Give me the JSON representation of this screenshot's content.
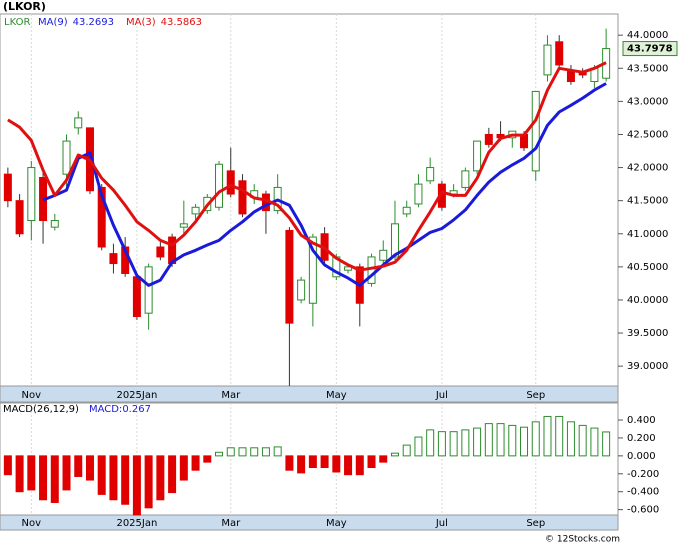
{
  "chart_data": {
    "type": "candlestick",
    "title": "(LKOR)",
    "symbol": "LKOR",
    "categories": [
      "",
      "",
      "Nov",
      "",
      "",
      "",
      "",
      "",
      "",
      "",
      "",
      "2025Jan",
      "",
      "",
      "",
      "",
      "",
      "",
      "",
      "Mar",
      "",
      "",
      "",
      "",
      "",
      "",
      "",
      "",
      "May",
      "",
      "",
      "",
      "",
      "",
      "",
      "",
      "",
      "Jul",
      "",
      "",
      "",
      "",
      "",
      "",
      "",
      "Sep",
      "",
      "",
      "",
      "",
      "",
      ""
    ],
    "candles": {
      "up_color": "#2e8b2e",
      "down_color": "#e00000",
      "open": [
        41.9,
        41.5,
        41.2,
        41.85,
        41.1,
        41.9,
        42.6,
        42.6,
        41.7,
        40.7,
        40.8,
        40.35,
        39.8,
        40.8,
        40.95,
        41.1,
        41.3,
        41.35,
        41.4,
        41.95,
        41.8,
        41.55,
        41.6,
        41.35,
        41.05,
        40.0,
        39.95,
        41.0,
        40.35,
        40.45,
        40.5,
        40.25,
        40.6,
        40.65,
        41.3,
        41.45,
        41.8,
        41.75,
        41.6,
        41.7,
        41.95,
        42.5,
        42.5,
        42.45,
        42.5,
        41.95,
        43.4,
        43.9,
        43.45,
        43.45,
        43.3,
        43.35
      ],
      "high": [
        42.0,
        41.6,
        42.1,
        41.95,
        41.3,
        42.5,
        42.85,
        42.6,
        41.75,
        40.85,
        40.95,
        40.4,
        40.55,
        40.9,
        41.0,
        41.5,
        41.45,
        41.6,
        42.1,
        42.3,
        41.9,
        41.75,
        41.65,
        41.9,
        41.1,
        40.35,
        41.0,
        41.1,
        40.7,
        40.55,
        40.55,
        40.7,
        40.9,
        41.5,
        41.5,
        41.9,
        42.15,
        41.8,
        41.75,
        42.0,
        42.4,
        42.6,
        42.7,
        42.55,
        42.55,
        43.15,
        44.0,
        44.0,
        43.55,
        43.5,
        43.55,
        44.1
      ],
      "low": [
        41.4,
        40.95,
        40.9,
        40.85,
        41.05,
        41.7,
        42.5,
        41.6,
        40.75,
        40.4,
        40.35,
        39.7,
        39.55,
        40.6,
        40.5,
        41.0,
        41.2,
        41.3,
        41.35,
        41.55,
        41.25,
        41.45,
        41.0,
        41.3,
        38.7,
        39.95,
        39.6,
        40.55,
        40.3,
        40.4,
        39.6,
        40.2,
        40.55,
        40.6,
        41.25,
        41.4,
        41.75,
        41.35,
        41.55,
        41.65,
        41.9,
        42.3,
        42.4,
        42.3,
        42.25,
        41.8,
        43.3,
        43.5,
        43.25,
        43.35,
        43.2,
        43.3
      ],
      "close": [
        41.5,
        41.0,
        42.0,
        41.2,
        41.2,
        42.4,
        42.75,
        41.65,
        40.8,
        40.55,
        40.4,
        39.75,
        40.5,
        40.65,
        40.55,
        41.15,
        41.4,
        41.55,
        42.05,
        41.6,
        41.3,
        41.65,
        41.35,
        41.7,
        39.65,
        40.3,
        40.95,
        40.6,
        40.65,
        40.5,
        39.95,
        40.65,
        40.75,
        41.15,
        41.4,
        41.75,
        42.0,
        41.4,
        41.65,
        41.95,
        42.4,
        42.35,
        42.45,
        42.55,
        42.3,
        43.15,
        43.85,
        43.55,
        43.3,
        43.4,
        43.5,
        43.7978
      ]
    },
    "series": [
      {
        "name": "MA(9)",
        "color": "#1a1adb",
        "values": [
          null,
          null,
          null,
          41.51,
          41.58,
          41.66,
          42.14,
          42.22,
          41.58,
          41.13,
          40.75,
          40.37,
          40.22,
          40.3,
          40.57,
          40.68,
          40.75,
          40.83,
          40.9,
          41.05,
          41.18,
          41.33,
          41.43,
          41.51,
          41.43,
          41.13,
          40.75,
          40.53,
          40.42,
          40.33,
          40.22,
          40.37,
          40.53,
          40.68,
          40.78,
          40.9,
          41.02,
          41.08,
          41.21,
          41.36,
          41.58,
          41.78,
          41.93,
          42.04,
          42.14,
          42.29,
          42.64,
          42.84,
          42.94,
          43.05,
          43.17,
          43.2693
        ]
      },
      {
        "name": "MA(3)",
        "color": "#e01010",
        "values": [
          42.72,
          42.61,
          42.41,
          41.96,
          41.58,
          41.81,
          42.19,
          42.11,
          41.84,
          41.66,
          41.43,
          41.18,
          41.05,
          40.9,
          40.83,
          40.98,
          41.18,
          41.43,
          41.63,
          41.73,
          41.66,
          41.54,
          41.51,
          41.43,
          41.24,
          40.98,
          40.86,
          40.78,
          40.63,
          40.53,
          40.45,
          40.48,
          40.51,
          40.57,
          40.75,
          41.05,
          41.33,
          41.63,
          41.58,
          41.58,
          41.84,
          42.23,
          42.44,
          42.49,
          42.49,
          42.72,
          43.17,
          43.5,
          43.47,
          43.44,
          43.5,
          43.5863
        ]
      }
    ],
    "ylim": [
      38.7,
      44.32
    ],
    "yticks": [
      {
        "value": 39,
        "label": "39.0000"
      },
      {
        "value": 39.5,
        "label": "39.5000"
      },
      {
        "value": 40,
        "label": "40.0000"
      },
      {
        "value": 40.5,
        "label": "40.5000"
      },
      {
        "value": 41,
        "label": "41.0000"
      },
      {
        "value": 41.5,
        "label": "41.5000"
      },
      {
        "value": 42,
        "label": "42.0000"
      },
      {
        "value": 42.5,
        "label": "42.5000"
      },
      {
        "value": 43,
        "label": "43.0000"
      },
      {
        "value": 43.5,
        "label": "43.5000"
      },
      {
        "value": 44,
        "label": "44.0000"
      }
    ],
    "macd": {
      "title": "MACD(26,12,9)",
      "legend_prefix": "MACD:",
      "up_color": "#2e8b2e",
      "down_color": "#e00000",
      "legend_color": "#1a1adb",
      "values": [
        -0.21,
        -0.4,
        -0.38,
        -0.49,
        -0.52,
        -0.38,
        -0.23,
        -0.27,
        -0.43,
        -0.49,
        -0.54,
        -0.66,
        -0.58,
        -0.49,
        -0.41,
        -0.27,
        -0.16,
        -0.07,
        0.04,
        0.09,
        0.09,
        0.09,
        0.09,
        0.1,
        -0.16,
        -0.19,
        -0.13,
        -0.13,
        -0.18,
        -0.21,
        -0.21,
        -0.13,
        -0.07,
        0.03,
        0.12,
        0.21,
        0.29,
        0.27,
        0.27,
        0.29,
        0.31,
        0.36,
        0.36,
        0.34,
        0.32,
        0.38,
        0.44,
        0.44,
        0.38,
        0.34,
        0.31,
        0.267
      ],
      "ylim": [
        -0.66,
        0.59
      ],
      "yticks": [
        {
          "value": 0.4,
          "label": "0.400"
        },
        {
          "value": 0.2,
          "label": "0.200"
        },
        {
          "value": 0,
          "label": "0.000"
        },
        {
          "value": -0.2,
          "label": "-0.200"
        },
        {
          "value": -0.4,
          "label": "-0.400"
        },
        {
          "value": -0.6,
          "label": "-0.600"
        }
      ]
    },
    "footer": "© 12Stocks.com"
  }
}
